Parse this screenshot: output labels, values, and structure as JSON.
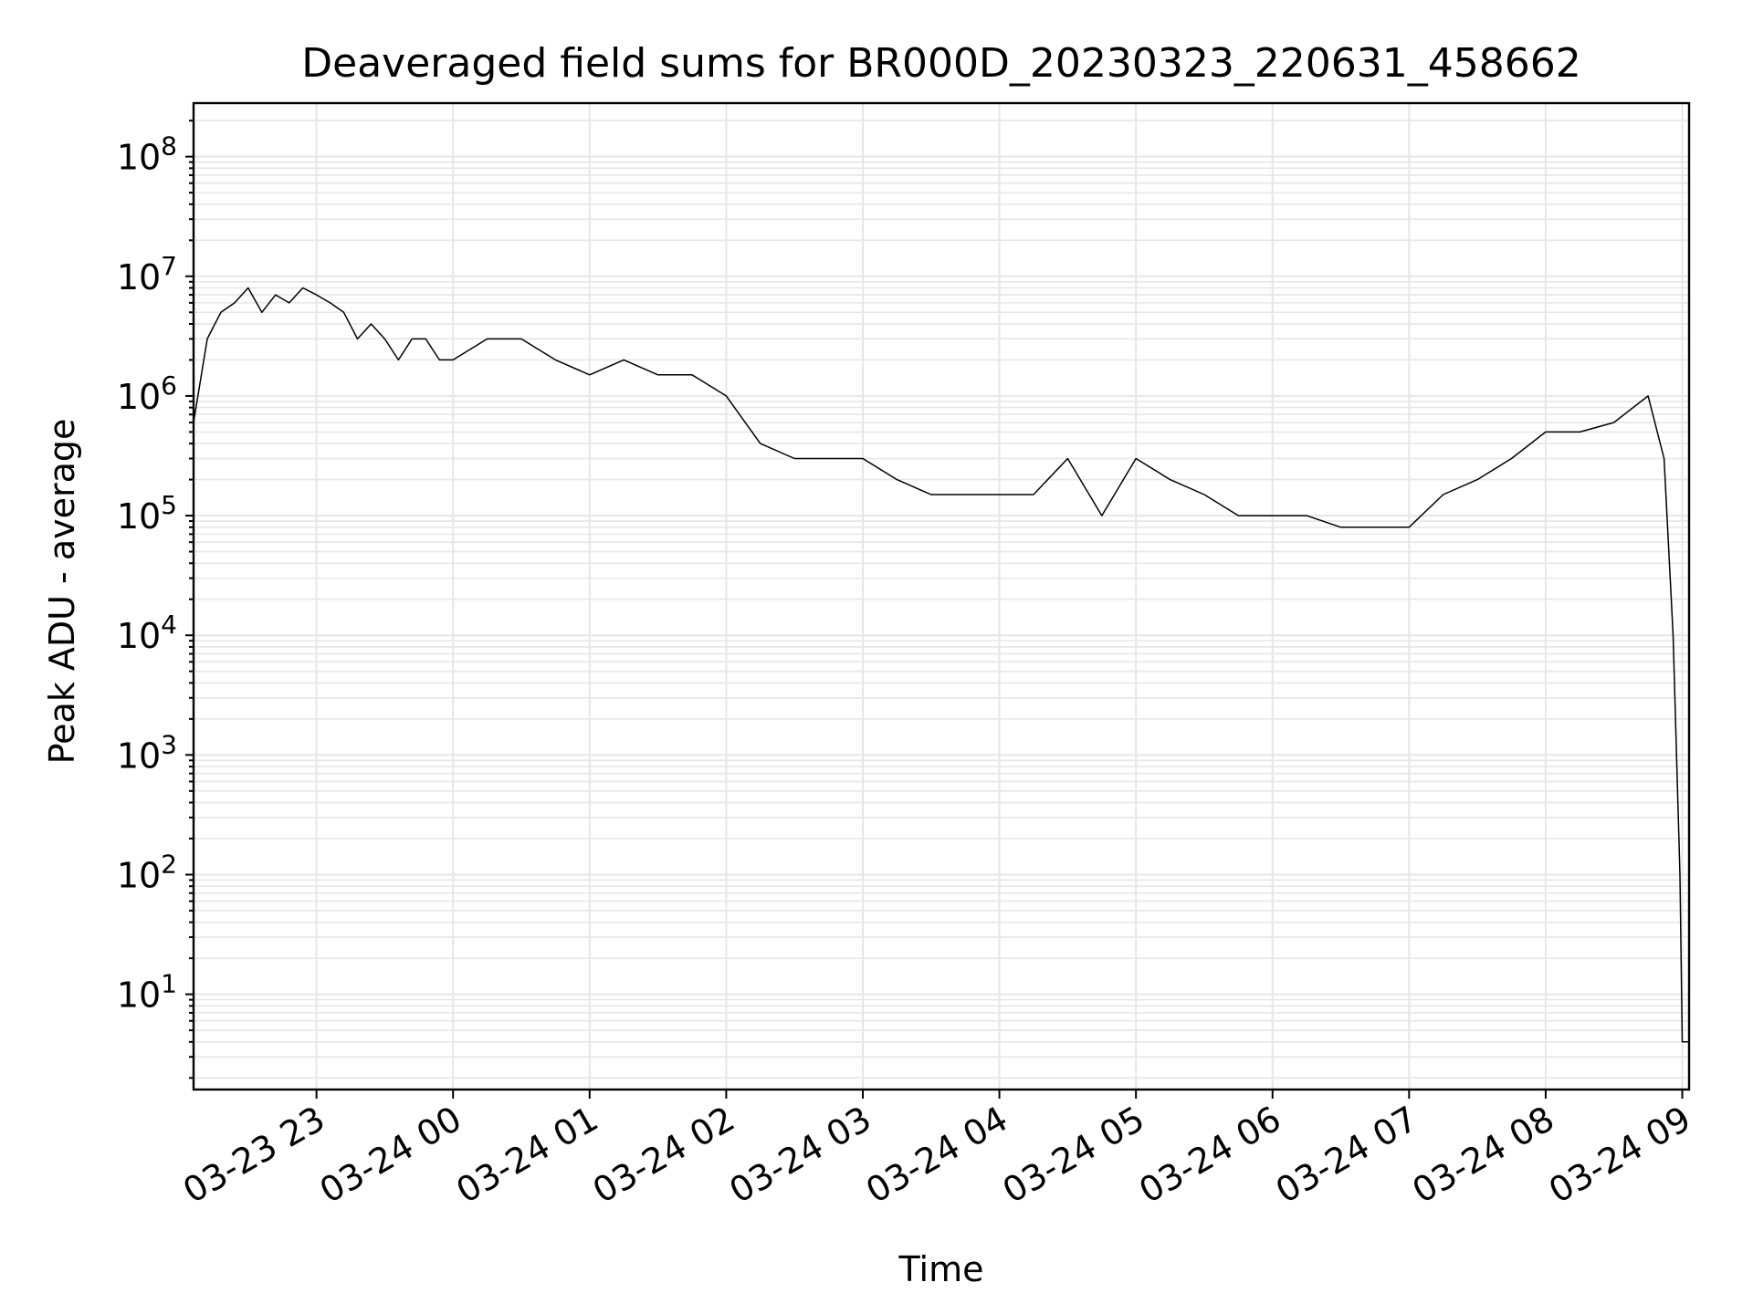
{
  "chart_data": {
    "type": "line",
    "title": "Deaveraged field sums for BR000D_20230323_220631_458662",
    "xlabel": "Time",
    "ylabel": "Peak ADU - average",
    "x_ticks": [
      "03-23 23",
      "03-24 00",
      "03-24 01",
      "03-24 02",
      "03-24 03",
      "03-24 04",
      "03-24 05",
      "03-24 06",
      "03-24 07",
      "03-24 08",
      "03-24 09"
    ],
    "xlim": [
      "2023-03-23 22:06",
      "2023-03-24 09:03"
    ],
    "y_scale": "log",
    "ylim": [
      1.6,
      280000000
    ],
    "y_ticks": [
      10,
      100,
      1000,
      10000,
      100000,
      1000000,
      10000000,
      100000000
    ],
    "y_tick_base": "10",
    "y_tick_exponents": [
      "1",
      "2",
      "3",
      "4",
      "5",
      "6",
      "7",
      "8"
    ],
    "grid": true,
    "line_color": "#000000",
    "series": [
      {
        "x": [
          "2023-03-23 22:06",
          "2023-03-23 22:12",
          "2023-03-23 22:18",
          "2023-03-23 22:24",
          "2023-03-23 22:30",
          "2023-03-23 22:36",
          "2023-03-23 22:42",
          "2023-03-23 22:48",
          "2023-03-23 22:54",
          "2023-03-23 23:00",
          "2023-03-23 23:06",
          "2023-03-23 23:12",
          "2023-03-23 23:18",
          "2023-03-23 23:24",
          "2023-03-23 23:30",
          "2023-03-23 23:36",
          "2023-03-23 23:42",
          "2023-03-23 23:48",
          "2023-03-23 23:54",
          "2023-03-24 00:00",
          "2023-03-24 00:15",
          "2023-03-24 00:30",
          "2023-03-24 00:45",
          "2023-03-24 01:00",
          "2023-03-24 01:15",
          "2023-03-24 01:30",
          "2023-03-24 01:45",
          "2023-03-24 02:00",
          "2023-03-24 02:15",
          "2023-03-24 02:30",
          "2023-03-24 02:45",
          "2023-03-24 03:00",
          "2023-03-24 03:15",
          "2023-03-24 03:30",
          "2023-03-24 03:45",
          "2023-03-24 04:00",
          "2023-03-24 04:15",
          "2023-03-24 04:30",
          "2023-03-24 04:45",
          "2023-03-24 05:00",
          "2023-03-24 05:15",
          "2023-03-24 05:30",
          "2023-03-24 05:45",
          "2023-03-24 06:00",
          "2023-03-24 06:15",
          "2023-03-24 06:30",
          "2023-03-24 06:45",
          "2023-03-24 07:00",
          "2023-03-24 07:15",
          "2023-03-24 07:30",
          "2023-03-24 07:45",
          "2023-03-24 08:00",
          "2023-03-24 08:15",
          "2023-03-24 08:30",
          "2023-03-24 08:45",
          "2023-03-24 08:52",
          "2023-03-24 08:56",
          "2023-03-24 08:59",
          "2023-03-24 09:00",
          "2023-03-24 09:01",
          "2023-03-24 09:03"
        ],
        "values": [
          600000,
          3000000,
          5000000,
          6000000,
          8000000,
          5000000,
          7000000,
          6000000,
          8000000,
          7000000,
          6000000,
          5000000,
          3000000,
          4000000,
          3000000,
          2000000,
          3000000,
          3000000,
          2000000,
          2000000,
          3000000,
          3000000,
          2000000,
          1500000,
          2000000,
          1500000,
          1500000,
          1000000,
          400000,
          300000,
          300000,
          300000,
          200000,
          150000,
          150000,
          150000,
          150000,
          300000,
          100000,
          300000,
          200000,
          150000,
          100000,
          100000,
          100000,
          80000,
          80000,
          80000,
          150000,
          200000,
          300000,
          500000,
          500000,
          600000,
          1000000,
          300000,
          10000,
          100,
          4,
          4,
          4
        ]
      }
    ]
  }
}
